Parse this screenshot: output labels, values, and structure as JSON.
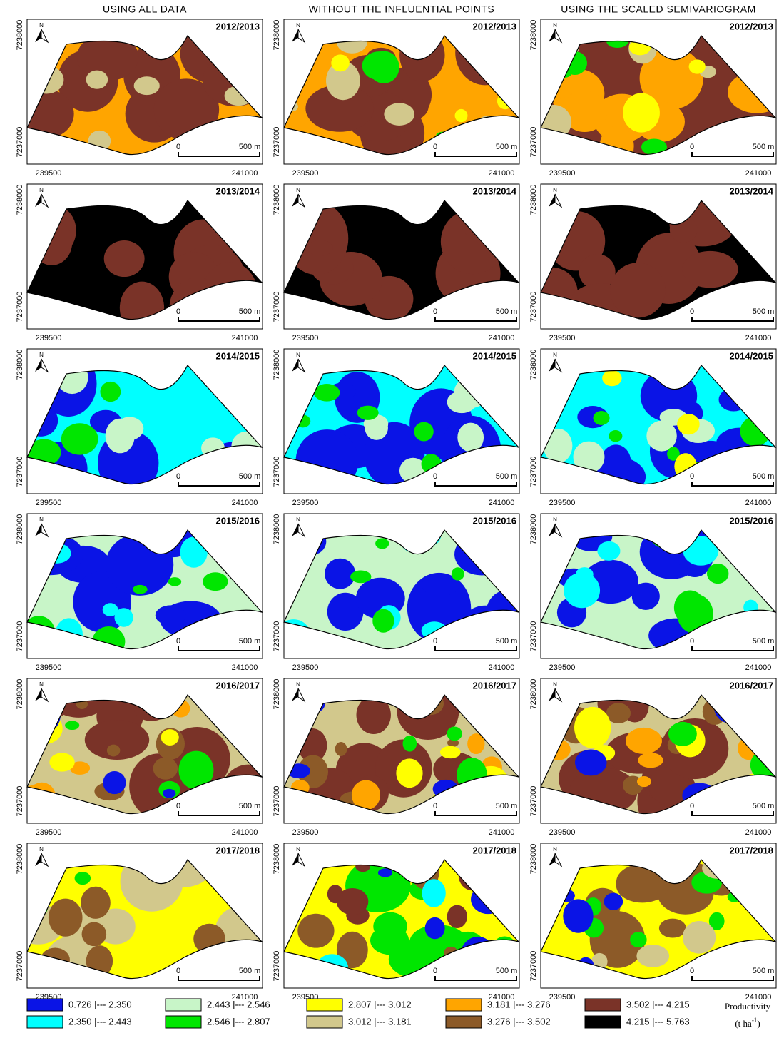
{
  "columns": [
    "USING ALL DATA",
    "WITHOUT THE INFLUENTIAL POINTS",
    "USING THE SCALED SEMIVARIOGRAM"
  ],
  "rows": [
    "2012/2013",
    "2013/2014",
    "2014/2015",
    "2015/2016",
    "2016/2017",
    "2017/2018"
  ],
  "axes": {
    "y_ticks": [
      "7238000",
      "7237000"
    ],
    "x_ticks": [
      "239500",
      "241000"
    ],
    "scale": [
      "0",
      "500 m"
    ],
    "north": "N"
  },
  "legend": {
    "title": "Productivity",
    "unit": {
      "base": "(t ha",
      "sup": "-1",
      "end": ")"
    },
    "classes": [
      {
        "label": "0.726 |--- 2.350",
        "color": "#0a14e6"
      },
      {
        "label": "2.350 |--- 2.443",
        "color": "#00ffff"
      },
      {
        "label": "2.443 |--- 2.546",
        "color": "#c8f5c8"
      },
      {
        "label": "2.546 |--- 2.807",
        "color": "#00e600"
      },
      {
        "label": "2.807 |--- 3.012",
        "color": "#ffff00"
      },
      {
        "label": "3.012 |--- 3.181",
        "color": "#d2c88c"
      },
      {
        "label": "3.181 |--- 3.276",
        "color": "#ffa500"
      },
      {
        "label": "3.276 |--- 3.502",
        "color": "#8c5a28"
      },
      {
        "label": "3.502 |--- 4.215",
        "color": "#7a3328"
      },
      {
        "label": "4.215 |--- 5.763",
        "color": "#000000"
      }
    ]
  }
}
